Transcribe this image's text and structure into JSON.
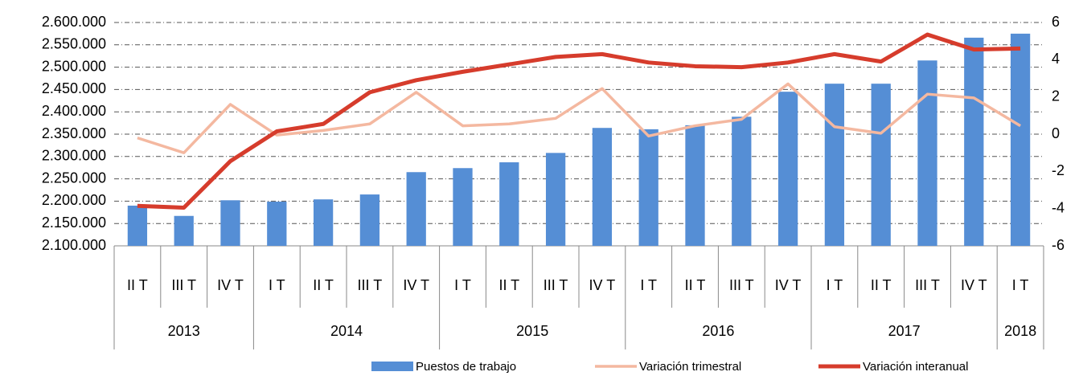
{
  "chart_data": {
    "type": "bar_line",
    "groups": [
      {
        "label": "2013",
        "categories": [
          "II T",
          "III T",
          "IV T"
        ]
      },
      {
        "label": "2014",
        "categories": [
          "I T",
          "II T",
          "III T",
          "IV T"
        ]
      },
      {
        "label": "2015",
        "categories": [
          "I T",
          "II T",
          "III T",
          "IV T"
        ]
      },
      {
        "label": "2016",
        "categories": [
          "I T",
          "II T",
          "III T",
          "IV T"
        ]
      },
      {
        "label": "2017",
        "categories": [
          "I T",
          "II T",
          "III T",
          "IV T"
        ]
      },
      {
        "label": "2018",
        "categories": [
          "I T"
        ]
      }
    ],
    "series": [
      {
        "name": "Puestos de trabajo",
        "type": "bar",
        "color": "#558ed5",
        "values": [
          2190000,
          2167000,
          2202000,
          2199000,
          2204000,
          2215000,
          2265000,
          2274000,
          2287000,
          2308000,
          2364000,
          2361000,
          2370000,
          2389000,
          2445000,
          2463000,
          2463000,
          2515000,
          2566000,
          2575000
        ]
      },
      {
        "name": "Variación trimestral",
        "type": "line",
        "axis": "y2",
        "color": "#f4b8a0",
        "values": [
          -0.2,
          -1.0,
          1.6,
          -0.05,
          0.2,
          0.55,
          2.25,
          0.45,
          0.55,
          0.85,
          2.45,
          -0.1,
          0.45,
          0.8,
          2.7,
          0.4,
          0.05,
          2.15,
          1.95,
          0.45
        ]
      },
      {
        "name": "Variación interanual",
        "type": "line",
        "axis": "y2",
        "color": "#d63c2c",
        "values": [
          -3.85,
          -3.95,
          -1.45,
          0.15,
          0.55,
          2.25,
          2.9,
          3.35,
          3.75,
          4.15,
          4.3,
          3.85,
          3.65,
          3.6,
          3.85,
          4.3,
          3.9,
          5.35,
          4.55,
          4.6
        ]
      }
    ],
    "ylim": [
      2100000,
      2600000
    ],
    "yticks": [
      {
        "value": 2100000,
        "label": "2.100.000"
      },
      {
        "value": 2150000,
        "label": "2.150.000"
      },
      {
        "value": 2200000,
        "label": "2.200.000"
      },
      {
        "value": 2250000,
        "label": "2.250.000"
      },
      {
        "value": 2300000,
        "label": "2.300.000"
      },
      {
        "value": 2350000,
        "label": "2.350.000"
      },
      {
        "value": 2400000,
        "label": "2.400.000"
      },
      {
        "value": 2450000,
        "label": "2.450.000"
      },
      {
        "value": 2500000,
        "label": "2.500.000"
      },
      {
        "value": 2550000,
        "label": "2.550.000"
      },
      {
        "value": 2600000,
        "label": "2.600.000"
      }
    ],
    "y2lim": [
      -6,
      6
    ],
    "y2ticks": [
      -6,
      -4,
      -2,
      0,
      2,
      4,
      6
    ],
    "grid": true,
    "legend": "bottom"
  }
}
